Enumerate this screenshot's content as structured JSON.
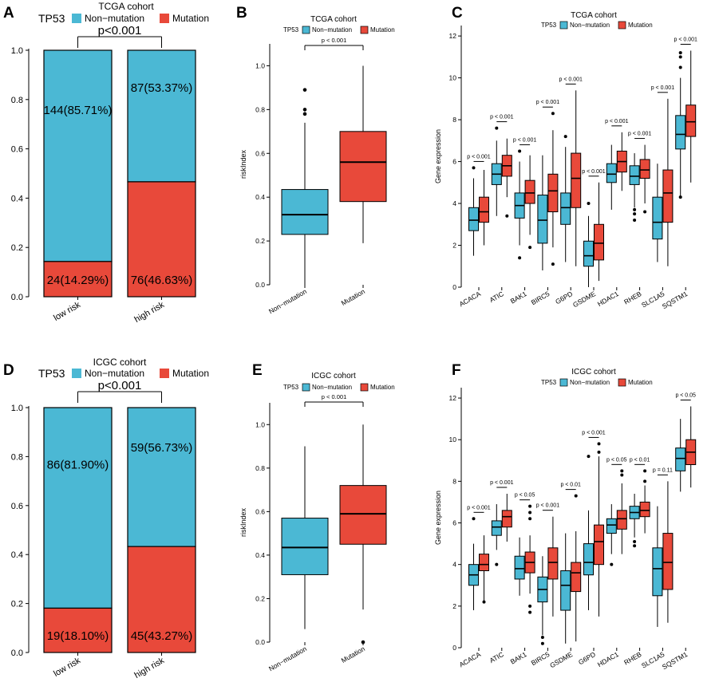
{
  "colors": {
    "non_mutation": "#4bb8d4",
    "mutation": "#e8493a",
    "axis": "#000000"
  },
  "legend": {
    "title": "TP53",
    "non_mutation": "Non−mutation",
    "mutation": "Mutation"
  },
  "chart_data": [
    {
      "panel": "A",
      "type": "bar",
      "stacked": true,
      "title": "TCGA cohort",
      "xlabel": "",
      "ylabel": "",
      "ylim": [
        0,
        1
      ],
      "yticks": [
        "0.0",
        "0.2",
        "0.4",
        "0.6",
        "0.8",
        "1.0"
      ],
      "categories": [
        "low risk",
        "high risk"
      ],
      "series": [
        {
          "name": "Mutation",
          "values": [
            0.1429,
            0.4663
          ],
          "labels": [
            "24(14.29%)",
            "76(46.63%)"
          ]
        },
        {
          "name": "Non-mutation",
          "values": [
            0.8571,
            0.5337
          ],
          "labels": [
            "144(85.71%)",
            "87(53.37%)"
          ]
        }
      ],
      "annotation": "p<0.001"
    },
    {
      "panel": "B",
      "type": "box",
      "title": "TCGA cohort",
      "xlabel": "",
      "ylabel": "riskIndex",
      "ylim": [
        0,
        1.1
      ],
      "yticks": [
        "0.0",
        "0.2",
        "0.4",
        "0.6",
        "0.8",
        "1.0"
      ],
      "categories": [
        "Non−mutation",
        "Mutation"
      ],
      "boxes": [
        {
          "min": 0.0,
          "q1": 0.23,
          "median": 0.32,
          "q3": 0.435,
          "max": 0.74,
          "outliers": [
            0.78,
            0.8,
            0.89
          ]
        },
        {
          "min": 0.19,
          "q1": 0.38,
          "median": 0.56,
          "q3": 0.7,
          "max": 1.0,
          "outliers": []
        }
      ],
      "pvalues": [
        "p < 0.001"
      ]
    },
    {
      "panel": "C",
      "type": "box",
      "title": "TCGA cohort",
      "xlabel": "",
      "ylabel": "Gene expression",
      "ylim": [
        0,
        12.5
      ],
      "yticks": [
        "0",
        "2",
        "4",
        "6",
        "8",
        "10",
        "12"
      ],
      "categories": [
        "ACACA",
        "ATIC",
        "BAK1",
        "BIRC5",
        "G6PD",
        "GSDME",
        "HDAC1",
        "RHEB",
        "SLC1A5",
        "SQSTM1"
      ],
      "series": [
        {
          "name": "Non-mutation",
          "boxes": [
            {
              "min": 1.5,
              "q1": 2.7,
              "median": 3.2,
              "q3": 3.8,
              "max": 5.2,
              "outliers": [
                5.7
              ]
            },
            {
              "min": 3.4,
              "q1": 4.9,
              "median": 5.4,
              "q3": 5.9,
              "max": 7.0,
              "outliers": [
                7.6
              ]
            },
            {
              "min": 2.0,
              "q1": 3.3,
              "median": 3.9,
              "q3": 4.5,
              "max": 6.0,
              "outliers": [
                1.4,
                6.5
              ]
            },
            {
              "min": 0.8,
              "q1": 2.1,
              "median": 3.2,
              "q3": 4.4,
              "max": 6.3,
              "outliers": []
            },
            {
              "min": 1.2,
              "q1": 3.0,
              "median": 3.8,
              "q3": 4.5,
              "max": 6.7,
              "outliers": [
                7.2
              ]
            },
            {
              "min": 0.0,
              "q1": 1.0,
              "median": 1.5,
              "q3": 2.2,
              "max": 3.4,
              "outliers": [
                4.0
              ]
            },
            {
              "min": 3.7,
              "q1": 5.0,
              "median": 5.4,
              "q3": 5.9,
              "max": 6.8,
              "outliers": []
            },
            {
              "min": 3.8,
              "q1": 4.9,
              "median": 5.3,
              "q3": 5.8,
              "max": 6.4,
              "outliers": [
                3.2,
                3.5,
                3.7
              ]
            },
            {
              "min": 1.2,
              "q1": 2.3,
              "median": 3.1,
              "q3": 4.3,
              "max": 5.9,
              "outliers": []
            },
            {
              "min": 4.3,
              "q1": 6.6,
              "median": 7.3,
              "q3": 8.2,
              "max": 10.0,
              "outliers": [
                10.5,
                11.0,
                11.2,
                4.3
              ]
            }
          ]
        },
        {
          "name": "Mutation",
          "boxes": [
            {
              "min": 2.0,
              "q1": 3.1,
              "median": 3.6,
              "q3": 4.3,
              "max": 5.6,
              "outliers": []
            },
            {
              "min": 4.3,
              "q1": 5.3,
              "median": 5.8,
              "q3": 6.3,
              "max": 7.1,
              "outliers": [
                3.4
              ]
            },
            {
              "min": 2.5,
              "q1": 4.0,
              "median": 4.5,
              "q3": 5.1,
              "max": 6.3,
              "outliers": [
                1.9
              ]
            },
            {
              "min": 1.9,
              "q1": 3.6,
              "median": 4.6,
              "q3": 5.4,
              "max": 7.5,
              "outliers": [
                1.1,
                8.3
              ]
            },
            {
              "min": 1.0,
              "q1": 3.8,
              "median": 5.2,
              "q3": 6.4,
              "max": 9.4,
              "outliers": []
            },
            {
              "min": 0.3,
              "q1": 1.3,
              "median": 2.1,
              "q3": 3.0,
              "max": 5.0,
              "outliers": []
            },
            {
              "min": 4.6,
              "q1": 5.5,
              "median": 6.0,
              "q3": 6.5,
              "max": 7.4,
              "outliers": []
            },
            {
              "min": 4.0,
              "q1": 5.2,
              "median": 5.6,
              "q3": 6.1,
              "max": 6.8,
              "outliers": [
                3.6
              ]
            },
            {
              "min": 1.0,
              "q1": 3.1,
              "median": 4.5,
              "q3": 5.6,
              "max": 9.0,
              "outliers": []
            },
            {
              "min": 5.0,
              "q1": 7.2,
              "median": 7.9,
              "q3": 8.7,
              "max": 11.3,
              "outliers": []
            }
          ]
        }
      ],
      "pvalues": [
        "p < 0.001",
        "p < 0.001",
        "p < 0.001",
        "p < 0.001",
        "p < 0.001",
        "p < 0.001",
        "p < 0.001",
        "p < 0.001",
        "p < 0.001",
        "p < 0.001"
      ]
    },
    {
      "panel": "D",
      "type": "bar",
      "stacked": true,
      "title": "ICGC cohort",
      "xlabel": "",
      "ylabel": "",
      "ylim": [
        0,
        1
      ],
      "yticks": [
        "0.0",
        "0.2",
        "0.4",
        "0.6",
        "0.8",
        "1.0"
      ],
      "categories": [
        "low risk",
        "high risk"
      ],
      "series": [
        {
          "name": "Mutation",
          "values": [
            0.181,
            0.4327
          ],
          "labels": [
            "19(18.10%)",
            "45(43.27%)"
          ]
        },
        {
          "name": "Non-mutation",
          "values": [
            0.819,
            0.5673
          ],
          "labels": [
            "86(81.90%)",
            "59(56.73%)"
          ]
        }
      ],
      "annotation": "p<0.001"
    },
    {
      "panel": "E",
      "type": "box",
      "title": "ICGC cohort",
      "xlabel": "",
      "ylabel": "riskIndex",
      "ylim": [
        0,
        1.1
      ],
      "yticks": [
        "0.0",
        "0.2",
        "0.4",
        "0.6",
        "0.8",
        "1.0"
      ],
      "categories": [
        "Non−mutation",
        "Mutation"
      ],
      "boxes": [
        {
          "min": 0.06,
          "q1": 0.31,
          "median": 0.435,
          "q3": 0.57,
          "max": 0.9,
          "outliers": []
        },
        {
          "min": 0.15,
          "q1": 0.45,
          "median": 0.59,
          "q3": 0.72,
          "max": 1.0,
          "outliers": [
            0.0
          ]
        }
      ],
      "pvalues": [
        "p < 0.001"
      ]
    },
    {
      "panel": "F",
      "type": "box",
      "title": "ICGC cohort",
      "xlabel": "",
      "ylabel": "Gene expression",
      "ylim": [
        0,
        12.5
      ],
      "yticks": [
        "0",
        "2",
        "4",
        "6",
        "8",
        "10",
        "12"
      ],
      "categories": [
        "ACACA",
        "ATIC",
        "BAK1",
        "BIRC5",
        "GSDME",
        "G6PD",
        "HDAC1",
        "RHEB",
        "SLC1A5",
        "SQSTM1"
      ],
      "series": [
        {
          "name": "Non-mutation",
          "boxes": [
            {
              "min": 1.8,
              "q1": 3.0,
              "median": 3.5,
              "q3": 4.0,
              "max": 5.0,
              "outliers": [
                6.2
              ]
            },
            {
              "min": 4.7,
              "q1": 5.4,
              "median": 5.8,
              "q3": 6.1,
              "max": 6.9,
              "outliers": [
                4.0
              ]
            },
            {
              "min": 2.5,
              "q1": 3.3,
              "median": 3.8,
              "q3": 4.4,
              "max": 5.3,
              "outliers": []
            },
            {
              "min": 0.6,
              "q1": 2.2,
              "median": 2.8,
              "q3": 3.4,
              "max": 4.4,
              "outliers": [
                0.2,
                0.5
              ]
            },
            {
              "min": 0.2,
              "q1": 1.8,
              "median": 3.0,
              "q3": 3.7,
              "max": 5.5,
              "outliers": []
            },
            {
              "min": 1.8,
              "q1": 3.5,
              "median": 4.1,
              "q3": 5.0,
              "max": 6.6,
              "outliers": [
                9.2
              ]
            },
            {
              "min": 4.5,
              "q1": 5.5,
              "median": 5.9,
              "q3": 6.2,
              "max": 6.9,
              "outliers": [
                4.0
              ]
            },
            {
              "min": 5.3,
              "q1": 6.2,
              "median": 6.5,
              "q3": 6.8,
              "max": 7.4,
              "outliers": [
                4.9,
                5.1
              ]
            },
            {
              "min": 1.0,
              "q1": 2.5,
              "median": 3.8,
              "q3": 4.8,
              "max": 6.8,
              "outliers": []
            },
            {
              "min": 7.5,
              "q1": 8.5,
              "median": 9.1,
              "q3": 9.6,
              "max": 11.0,
              "outliers": []
            }
          ]
        },
        {
          "name": "Mutation",
          "boxes": [
            {
              "min": 2.2,
              "q1": 3.7,
              "median": 4.0,
              "q3": 4.5,
              "max": 5.4,
              "outliers": [
                2.2
              ]
            },
            {
              "min": 5.1,
              "q1": 5.8,
              "median": 6.3,
              "q3": 6.6,
              "max": 7.4,
              "outliers": []
            },
            {
              "min": 2.6,
              "q1": 3.6,
              "median": 4.1,
              "q3": 4.6,
              "max": 5.4,
              "outliers": [
                1.7,
                2.0,
                6.2,
                6.5,
                6.8
              ]
            },
            {
              "min": 1.5,
              "q1": 3.3,
              "median": 4.1,
              "q3": 4.8,
              "max": 6.3,
              "outliers": []
            },
            {
              "min": 0.3,
              "q1": 2.7,
              "median": 3.6,
              "q3": 4.1,
              "max": 5.6,
              "outliers": [
                7.3
              ]
            },
            {
              "min": 1.5,
              "q1": 4.0,
              "median": 5.1,
              "q3": 5.9,
              "max": 9.2,
              "outliers": [
                9.4,
                9.8
              ]
            },
            {
              "min": 4.5,
              "q1": 5.7,
              "median": 6.2,
              "q3": 6.6,
              "max": 7.9,
              "outliers": [
                8.3,
                8.5
              ]
            },
            {
              "min": 5.5,
              "q1": 6.3,
              "median": 6.6,
              "q3": 7.0,
              "max": 7.8,
              "outliers": [
                8.0,
                8.5
              ]
            },
            {
              "min": 1.2,
              "q1": 2.8,
              "median": 4.1,
              "q3": 5.5,
              "max": 8.0,
              "outliers": []
            },
            {
              "min": 7.7,
              "q1": 8.8,
              "median": 9.4,
              "q3": 10.0,
              "max": 11.6,
              "outliers": []
            }
          ]
        }
      ],
      "pvalues": [
        "p < 0.001",
        "p < 0.001",
        "p < 0.05",
        "p < 0.001",
        "p < 0.01",
        "p < 0.001",
        "p < 0.05",
        "p < 0.01",
        "p = 0.11",
        "p < 0.05"
      ]
    }
  ]
}
